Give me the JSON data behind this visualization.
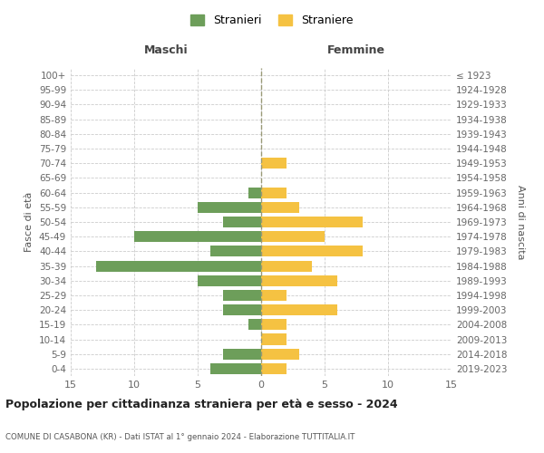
{
  "age_groups": [
    "100+",
    "95-99",
    "90-94",
    "85-89",
    "80-84",
    "75-79",
    "70-74",
    "65-69",
    "60-64",
    "55-59",
    "50-54",
    "45-49",
    "40-44",
    "35-39",
    "30-34",
    "25-29",
    "20-24",
    "15-19",
    "10-14",
    "5-9",
    "0-4"
  ],
  "birth_years": [
    "≤ 1923",
    "1924-1928",
    "1929-1933",
    "1934-1938",
    "1939-1943",
    "1944-1948",
    "1949-1953",
    "1954-1958",
    "1959-1963",
    "1964-1968",
    "1969-1973",
    "1974-1978",
    "1979-1983",
    "1984-1988",
    "1989-1993",
    "1994-1998",
    "1999-2003",
    "2004-2008",
    "2009-2013",
    "2014-2018",
    "2019-2023"
  ],
  "maschi": [
    0,
    0,
    0,
    0,
    0,
    0,
    0,
    0,
    1,
    5,
    3,
    10,
    4,
    13,
    5,
    3,
    3,
    1,
    0,
    3,
    4
  ],
  "femmine": [
    0,
    0,
    0,
    0,
    0,
    0,
    2,
    0,
    2,
    3,
    8,
    5,
    8,
    4,
    6,
    2,
    6,
    2,
    2,
    3,
    2
  ],
  "color_maschi": "#6d9e5a",
  "color_femmine": "#f5c242",
  "title": "Popolazione per cittadinanza straniera per età e sesso - 2024",
  "subtitle": "COMUNE DI CASABONA (KR) - Dati ISTAT al 1° gennaio 2024 - Elaborazione TUTTITALIA.IT",
  "xlabel_left": "Maschi",
  "xlabel_right": "Femmine",
  "ylabel_left": "Fasce di età",
  "ylabel_right": "Anni di nascita",
  "legend_maschi": "Stranieri",
  "legend_femmine": "Straniere",
  "xlim": 15,
  "background_color": "#ffffff",
  "grid_color": "#cccccc"
}
